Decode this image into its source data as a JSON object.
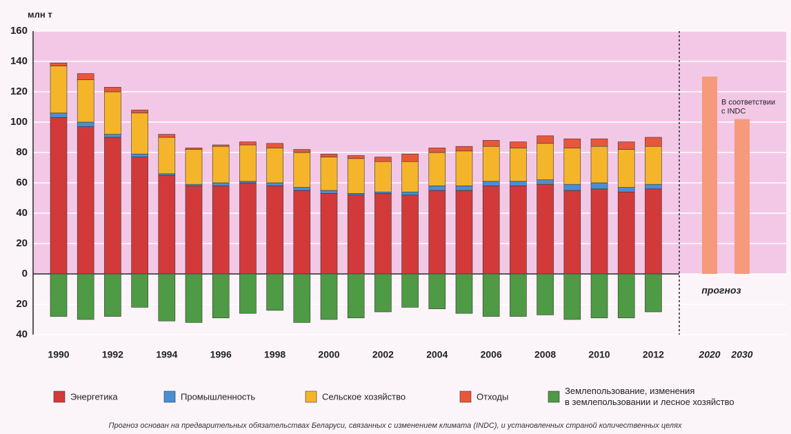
{
  "chart_data": {
    "type": "stacked_bar",
    "ylabel": "млн т",
    "footnote": "Прогноз основан на предварительных обязательствах Беларуси, связанных с изменением климата (INDC), и установленных страной количественных целях",
    "categories": [
      "1990",
      null,
      "1992",
      null,
      "1994",
      null,
      "1996",
      null,
      "1998",
      null,
      "2000",
      null,
      "2002",
      null,
      "2004",
      null,
      "2006",
      null,
      "2008",
      null,
      "2010",
      null,
      "2012"
    ],
    "series": [
      {
        "name": "Энергетика",
        "color": "#d23a3a",
        "values": [
          103,
          97,
          90,
          77,
          65,
          58,
          58,
          60,
          58,
          55,
          53,
          52,
          53,
          52,
          55,
          55,
          58,
          58,
          59,
          55,
          56,
          54,
          56
        ]
      },
      {
        "name": "Промышленность",
        "color": "#4a8fd4",
        "values": [
          3,
          3,
          2,
          2,
          1,
          1,
          2,
          1,
          2,
          2,
          2,
          1,
          1,
          2,
          3,
          3,
          3,
          3,
          3,
          4,
          4,
          3,
          3
        ]
      },
      {
        "name": "Сельское хозяйство",
        "color": "#f5b52a",
        "values": [
          31,
          28,
          28,
          27,
          24,
          23,
          24,
          24,
          23,
          23,
          22,
          23,
          20,
          20,
          22,
          23,
          23,
          22,
          24,
          24,
          24,
          25,
          25
        ]
      },
      {
        "name": "Отходы",
        "color": "#e8573a",
        "values": [
          2,
          4,
          3,
          2,
          2,
          1,
          1,
          2,
          3,
          2,
          2,
          2,
          3,
          5,
          3,
          3,
          4,
          4,
          5,
          6,
          5,
          5,
          6
        ]
      },
      {
        "name": "Землепользование, изменения\nв землепользовании и лесное хозяйство",
        "color": "#4e9a45",
        "values": [
          -28,
          -30,
          -28,
          -22,
          -31,
          -32,
          -29,
          -26,
          -24,
          -32,
          -30,
          -29,
          -25,
          -22,
          -23,
          -26,
          -28,
          -28,
          -27,
          -30,
          -29,
          -29,
          -25
        ]
      }
    ],
    "forecast": {
      "label": "прогноз",
      "annotation": "В соответствии\nс INDC",
      "color": "#f59a7a",
      "categories": [
        "2020",
        "2030"
      ],
      "values": [
        130,
        102
      ]
    },
    "ylim": [
      -40,
      160
    ],
    "yticks": [
      {
        "value": -40,
        "label": "40"
      },
      {
        "value": -20,
        "label": "20"
      },
      0,
      20,
      40,
      60,
      80,
      100,
      120,
      140,
      160
    ],
    "grid": true
  }
}
